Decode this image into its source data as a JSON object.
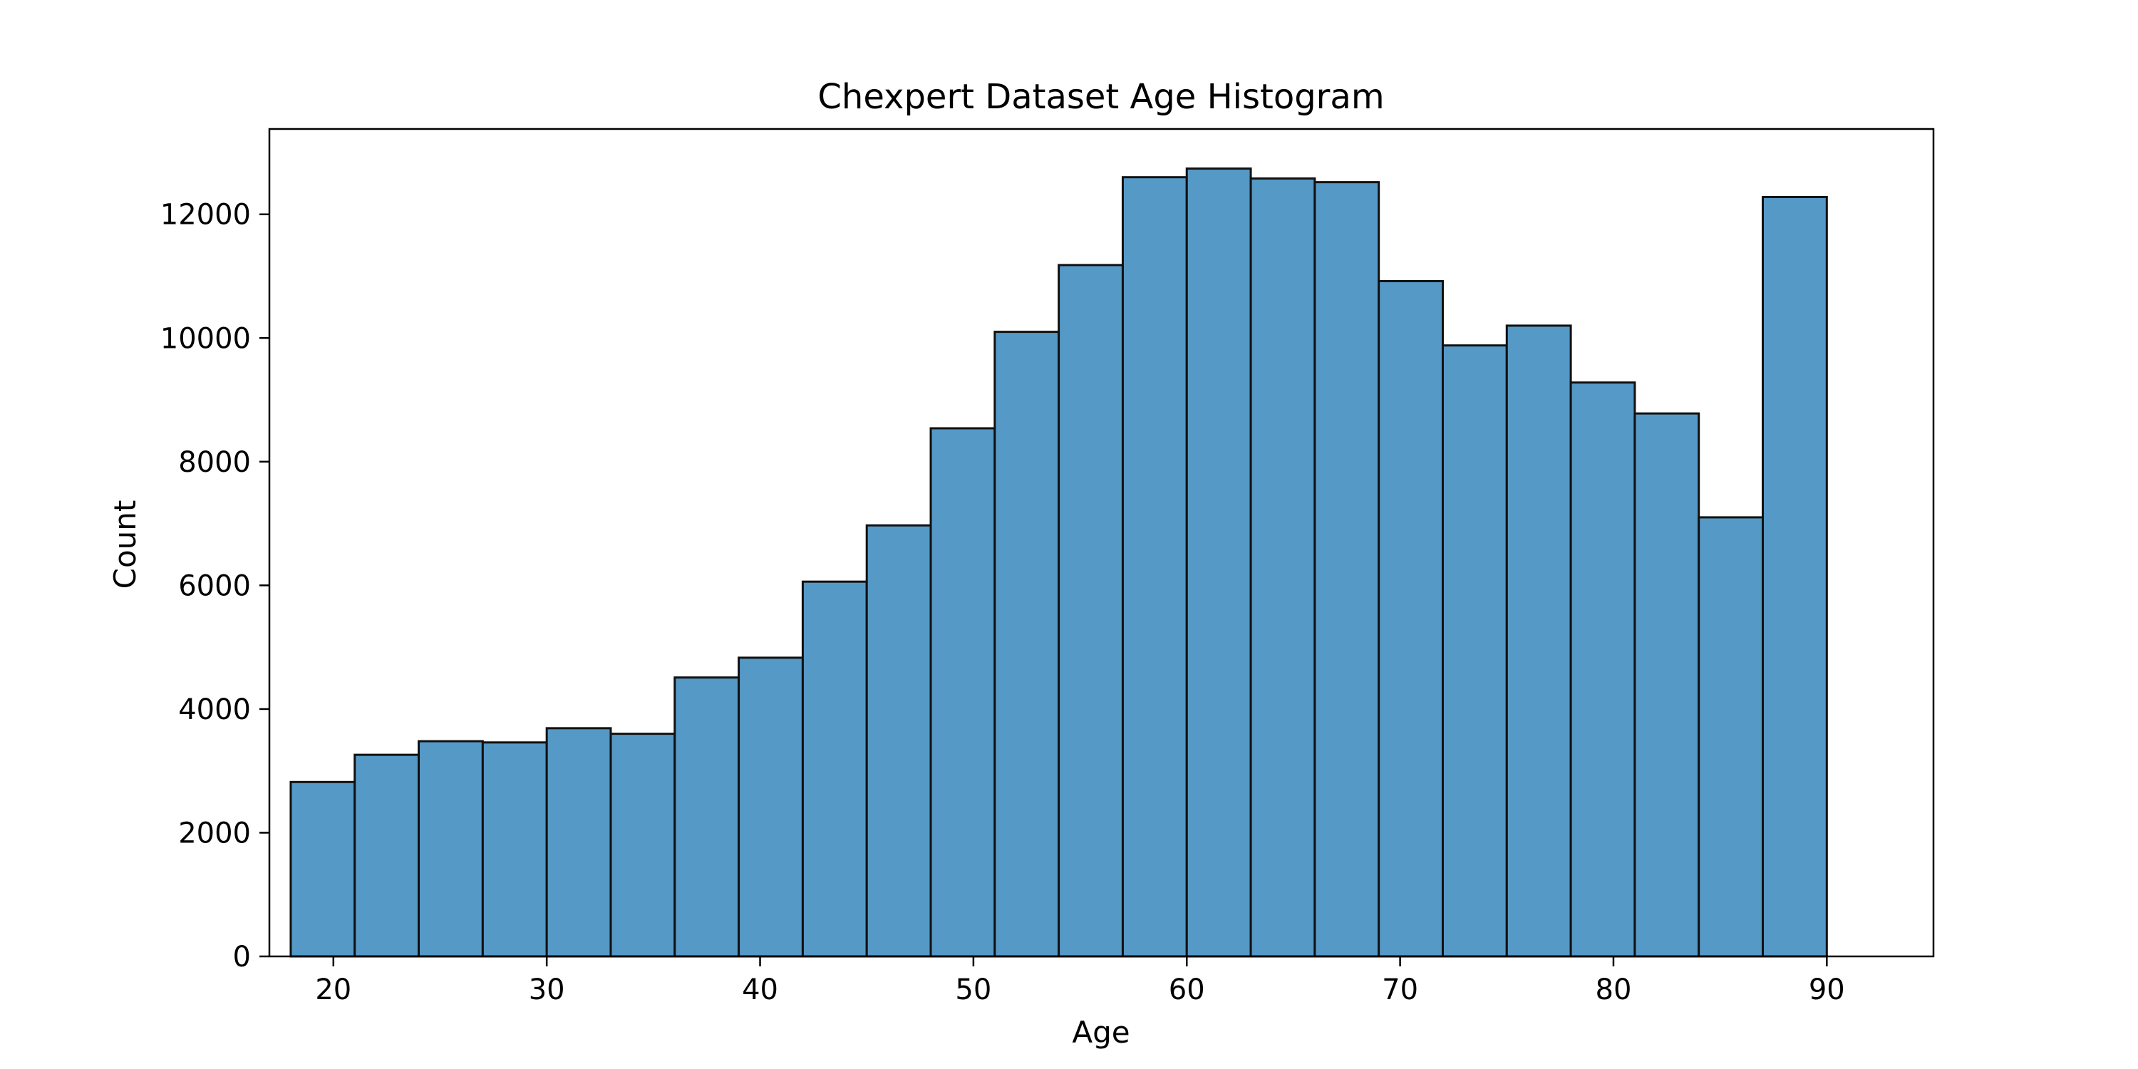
{
  "chart_data": {
    "type": "bar",
    "title": "Chexpert Dataset Age Histogram",
    "xlabel": "Age",
    "ylabel": "Count",
    "bin_width": 3,
    "bins": [
      {
        "x0": 18,
        "x1": 21,
        "count": 2820
      },
      {
        "x0": 21,
        "x1": 24,
        "count": 3260
      },
      {
        "x0": 24,
        "x1": 27,
        "count": 3480
      },
      {
        "x0": 27,
        "x1": 30,
        "count": 3460
      },
      {
        "x0": 30,
        "x1": 33,
        "count": 3690
      },
      {
        "x0": 33,
        "x1": 36,
        "count": 3600
      },
      {
        "x0": 36,
        "x1": 39,
        "count": 4510
      },
      {
        "x0": 39,
        "x1": 42,
        "count": 4830
      },
      {
        "x0": 42,
        "x1": 45,
        "count": 6060
      },
      {
        "x0": 45,
        "x1": 48,
        "count": 6970
      },
      {
        "x0": 48,
        "x1": 51,
        "count": 8540
      },
      {
        "x0": 51,
        "x1": 54,
        "count": 10100
      },
      {
        "x0": 54,
        "x1": 57,
        "count": 11180
      },
      {
        "x0": 57,
        "x1": 60,
        "count": 12600
      },
      {
        "x0": 60,
        "x1": 63,
        "count": 12740
      },
      {
        "x0": 63,
        "x1": 66,
        "count": 12580
      },
      {
        "x0": 66,
        "x1": 69,
        "count": 12520
      },
      {
        "x0": 69,
        "x1": 72,
        "count": 10920
      },
      {
        "x0": 72,
        "x1": 75,
        "count": 9880
      },
      {
        "x0": 75,
        "x1": 78,
        "count": 10200
      },
      {
        "x0": 78,
        "x1": 81,
        "count": 9280
      },
      {
        "x0": 81,
        "x1": 84,
        "count": 8780
      },
      {
        "x0": 84,
        "x1": 87,
        "count": 7100
      },
      {
        "x0": 87,
        "x1": 90,
        "count": 12280
      }
    ],
    "xlim": [
      17,
      95
    ],
    "ylim": [
      0,
      13380
    ],
    "xticks": [
      20,
      30,
      40,
      50,
      60,
      70,
      80,
      90
    ],
    "yticks": [
      0,
      2000,
      4000,
      6000,
      8000,
      10000,
      12000
    ],
    "grid": false,
    "colors": {
      "bar_fill": "#5599c7",
      "bar_edge": "#111111",
      "axes": "#000000"
    }
  }
}
